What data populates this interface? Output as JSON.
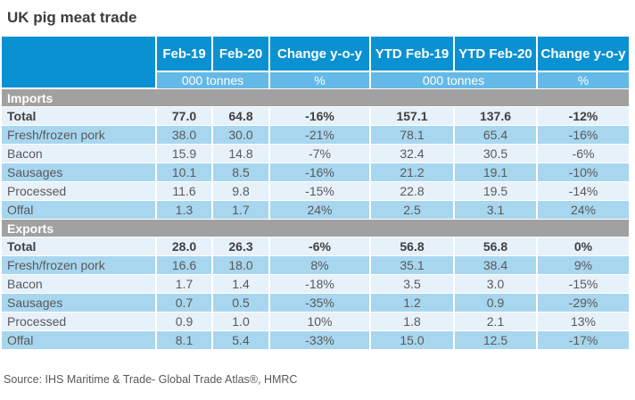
{
  "title": "UK pig meat trade",
  "source": "Source: IHS Maritime & Trade- Global Trade Atlas®, HMRC",
  "colors": {
    "header_blue": "#0a91d2",
    "subheader_blue": "#64b9e6",
    "section_gray": "#a1a1a1",
    "row_light": "#e7f1fa",
    "row_medium": "#a8d6ef",
    "text_dark": "#404040",
    "text_body": "#595959"
  },
  "chart_data": {
    "type": "table",
    "title": "UK pig meat trade",
    "columns": [
      "",
      "Feb-19",
      "Feb-20",
      "Change y-o-y",
      "YTD Feb-19",
      "YTD Feb-20",
      "Change y-o-y"
    ],
    "unit_cells": [
      {
        "label": "000 tonnes",
        "colspan": 2
      },
      {
        "label": "%",
        "colspan": 1
      },
      {
        "label": "000 tonnes",
        "colspan": 2
      },
      {
        "label": "%",
        "colspan": 1
      }
    ],
    "sections": [
      {
        "name": "Imports",
        "rows": [
          {
            "label": "Total",
            "bold": true,
            "values": [
              "77.0",
              "64.8",
              "-16%",
              "157.1",
              "137.6",
              "-12%"
            ]
          },
          {
            "label": "Fresh/frozen pork",
            "values": [
              "38.0",
              "30.0",
              "-21%",
              "78.1",
              "65.4",
              "-16%"
            ]
          },
          {
            "label": "Bacon",
            "values": [
              "15.9",
              "14.8",
              "-7%",
              "32.4",
              "30.5",
              "-6%"
            ]
          },
          {
            "label": "Sausages",
            "values": [
              "10.1",
              "8.5",
              "-16%",
              "21.2",
              "19.1",
              "-10%"
            ]
          },
          {
            "label": "Processed",
            "values": [
              "11.6",
              "9.8",
              "-15%",
              "22.8",
              "19.5",
              "-14%"
            ]
          },
          {
            "label": "Offal",
            "values": [
              "1.3",
              "1.7",
              "24%",
              "2.5",
              "3.1",
              "24%"
            ]
          }
        ]
      },
      {
        "name": "Exports",
        "rows": [
          {
            "label": "Total",
            "bold": true,
            "values": [
              "28.0",
              "26.3",
              "-6%",
              "56.8",
              "56.8",
              "0%"
            ]
          },
          {
            "label": "Fresh/frozen pork",
            "values": [
              "16.6",
              "18.0",
              "8%",
              "35.1",
              "38.4",
              "9%"
            ]
          },
          {
            "label": "Bacon",
            "values": [
              "1.7",
              "1.4",
              "-18%",
              "3.5",
              "3.0",
              "-15%"
            ]
          },
          {
            "label": "Sausages",
            "values": [
              "0.7",
              "0.5",
              "-35%",
              "1.2",
              "0.9",
              "-29%"
            ]
          },
          {
            "label": "Processed",
            "values": [
              "0.9",
              "1.0",
              "10%",
              "1.8",
              "2.1",
              "13%"
            ]
          },
          {
            "label": "Offal",
            "values": [
              "8.1",
              "5.4",
              "-33%",
              "15.0",
              "12.5",
              "-17%"
            ]
          }
        ]
      }
    ]
  }
}
